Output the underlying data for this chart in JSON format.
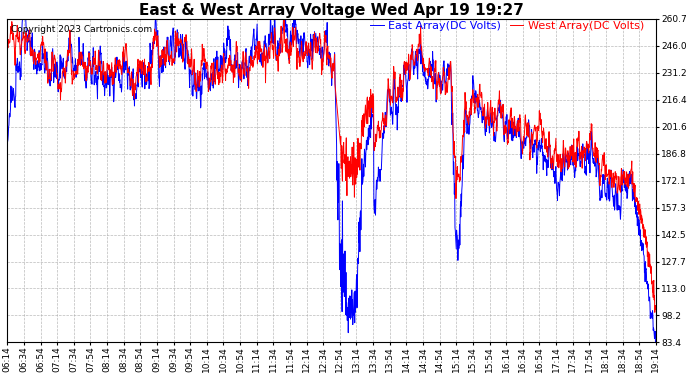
{
  "title": "East & West Array Voltage Wed Apr 19 19:27",
  "legend_east": "East Array(DC Volts)",
  "legend_west": "West Array(DC Volts)",
  "copyright": "Copyright 2023 Cartronics.com",
  "east_color": "#0000ff",
  "west_color": "#ff0000",
  "bg_color": "#ffffff",
  "grid_color": "#aaaaaa",
  "ylim": [
    83.4,
    260.7
  ],
  "yticks": [
    83.4,
    98.2,
    113.0,
    127.7,
    142.5,
    157.3,
    172.1,
    186.8,
    201.6,
    216.4,
    231.2,
    246.0,
    260.7
  ],
  "xtick_labels": [
    "06:14",
    "06:34",
    "06:54",
    "07:14",
    "07:34",
    "07:54",
    "08:14",
    "08:34",
    "08:54",
    "09:14",
    "09:34",
    "09:54",
    "10:14",
    "10:34",
    "10:54",
    "11:14",
    "11:34",
    "11:54",
    "12:14",
    "12:34",
    "12:54",
    "13:14",
    "13:34",
    "13:54",
    "14:14",
    "14:34",
    "14:54",
    "15:14",
    "15:34",
    "15:54",
    "16:14",
    "16:34",
    "16:54",
    "17:14",
    "17:34",
    "17:54",
    "18:14",
    "18:34",
    "18:54",
    "19:14"
  ],
  "title_fontsize": 11,
  "legend_fontsize": 8,
  "tick_fontsize": 6.5,
  "copyright_fontsize": 6.5,
  "linewidth": 0.7
}
